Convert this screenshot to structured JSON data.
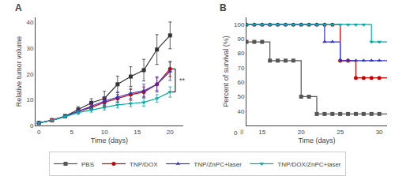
{
  "chart_data": [
    {
      "type": "line",
      "title": "A",
      "x_label": "Time (days)",
      "y_label": "Relative tumor volume",
      "xlim": [
        -0.5,
        22
      ],
      "ylim": [
        0,
        42
      ],
      "xticks": [
        0,
        5,
        10,
        15,
        20
      ],
      "yticks": [
        0,
        10,
        20,
        30,
        40
      ],
      "grid": false,
      "series": [
        {
          "name": "PBS",
          "color": "#333333",
          "marker": "square",
          "x": [
            0,
            2,
            4,
            6,
            8,
            10,
            12,
            14,
            16,
            18,
            20
          ],
          "values": [
            1,
            2.1,
            3.6,
            6.2,
            8.8,
            10.5,
            16,
            19,
            21.5,
            29.5,
            35
          ],
          "errors": [
            0.1,
            0.5,
            0.7,
            1.1,
            1.6,
            2.8,
            3.2,
            3.8,
            4.2,
            5.8,
            5.2
          ]
        },
        {
          "name": "TNP/DOX",
          "color": "#cc0000",
          "marker": "circle",
          "x": [
            0,
            2,
            4,
            6,
            8,
            10,
            12,
            14,
            16,
            18,
            20
          ],
          "values": [
            1,
            2.0,
            3.5,
            5.5,
            7.0,
            9.0,
            10.5,
            12.0,
            13.0,
            16.0,
            22.0
          ],
          "errors": [
            0.1,
            0.3,
            0.5,
            0.8,
            1.0,
            1.5,
            1.5,
            2.0,
            2.0,
            2.5,
            3.0
          ]
        },
        {
          "name": "TNP/ZnPC+laser",
          "color": "#3333cc",
          "marker": "triangle-up",
          "x": [
            0,
            2,
            4,
            6,
            8,
            10,
            12,
            14,
            16,
            18,
            20
          ],
          "values": [
            1,
            2.0,
            3.5,
            5.6,
            7.5,
            9.5,
            11.0,
            12.5,
            13.5,
            16.0,
            21.0
          ],
          "errors": [
            0.1,
            0.3,
            0.5,
            0.8,
            1.2,
            1.5,
            2.0,
            2.0,
            2.5,
            3.0,
            3.5
          ]
        },
        {
          "name": "TNP/DOX/ZnPC+laser",
          "color": "#00aaaa",
          "marker": "triangle-down",
          "x": [
            0,
            2,
            4,
            6,
            8,
            10,
            12,
            14,
            16,
            18,
            20
          ],
          "values": [
            1,
            2.0,
            3.4,
            5.0,
            6.0,
            7.0,
            8.0,
            8.5,
            9.0,
            10.5,
            13.0
          ],
          "errors": [
            0.1,
            0.3,
            0.4,
            0.7,
            0.8,
            1.0,
            1.2,
            1.2,
            1.5,
            1.5,
            2.0
          ]
        }
      ],
      "annotations": [
        {
          "text": "**",
          "x": 20.8,
          "y": [
            13.0,
            22.0
          ]
        }
      ]
    },
    {
      "type": "line",
      "title": "B",
      "x_label": "Time (days)",
      "y_label": "Percent of survival (%)",
      "xlim": [
        13,
        31
      ],
      "ylim": [
        30,
        105
      ],
      "xticks": [
        15,
        20,
        25,
        30
      ],
      "yticks": [
        40,
        50,
        60,
        70,
        80,
        90,
        100
      ],
      "grid": false,
      "legend": "bottom",
      "line_style": "step",
      "series": [
        {
          "name": "PBS",
          "color": "#555555",
          "marker": "square",
          "x": [
            13,
            16,
            16,
            20,
            20,
            22,
            22,
            23,
            23,
            31
          ],
          "values": [
            88,
            88,
            75,
            75,
            50,
            50,
            38,
            38,
            38,
            38
          ],
          "marker_x": [
            13,
            14,
            15,
            16,
            17,
            18,
            19,
            20,
            21,
            22,
            23,
            24,
            25,
            26,
            27,
            28,
            29,
            30
          ],
          "marker_values": [
            88,
            88,
            88,
            75,
            75,
            75,
            75,
            50,
            50,
            38,
            38,
            38,
            38,
            38,
            38,
            38,
            38,
            38
          ]
        },
        {
          "name": "TNP/DOX",
          "color": "#cc0000",
          "marker": "circle",
          "x": [
            13,
            25,
            25,
            27,
            27,
            29,
            29,
            31
          ],
          "values": [
            100,
            100,
            75,
            75,
            63,
            63,
            63,
            63
          ],
          "marker_x": [
            13,
            14,
            15,
            16,
            17,
            18,
            19,
            20,
            21,
            22,
            23,
            24,
            25,
            26,
            27,
            28,
            29,
            30
          ],
          "marker_values": [
            100,
            100,
            100,
            100,
            100,
            100,
            100,
            100,
            100,
            100,
            100,
            100,
            75,
            75,
            63,
            63,
            63,
            63
          ]
        },
        {
          "name": "TNP/ZnPC+laser",
          "color": "#3333cc",
          "marker": "triangle-up",
          "x": [
            13,
            23,
            23,
            25,
            25,
            29,
            29,
            31
          ],
          "values": [
            100,
            100,
            88,
            88,
            75,
            75,
            75,
            75
          ],
          "marker_x": [
            13,
            14,
            15,
            16,
            17,
            18,
            19,
            20,
            21,
            22,
            23,
            24,
            25,
            26,
            27,
            28,
            29,
            30
          ],
          "marker_values": [
            100,
            100,
            100,
            100,
            100,
            100,
            100,
            100,
            100,
            100,
            88,
            88,
            75,
            75,
            75,
            75,
            75,
            75
          ]
        },
        {
          "name": "TNP/DOX/ZnPC+laser",
          "color": "#00aaaa",
          "marker": "triangle-down",
          "x": [
            13,
            29,
            29,
            31
          ],
          "values": [
            100,
            100,
            88,
            88
          ],
          "marker_x": [
            13,
            14,
            15,
            16,
            17,
            18,
            19,
            20,
            21,
            22,
            23,
            24,
            25,
            26,
            27,
            28,
            29,
            30
          ],
          "marker_values": [
            100,
            100,
            100,
            100,
            100,
            100,
            100,
            100,
            100,
            100,
            100,
            100,
            100,
            100,
            100,
            100,
            88,
            88
          ]
        }
      ],
      "annotations": [
        {
          "text": "0"
        },
        {
          "text": "//"
        }
      ]
    }
  ]
}
